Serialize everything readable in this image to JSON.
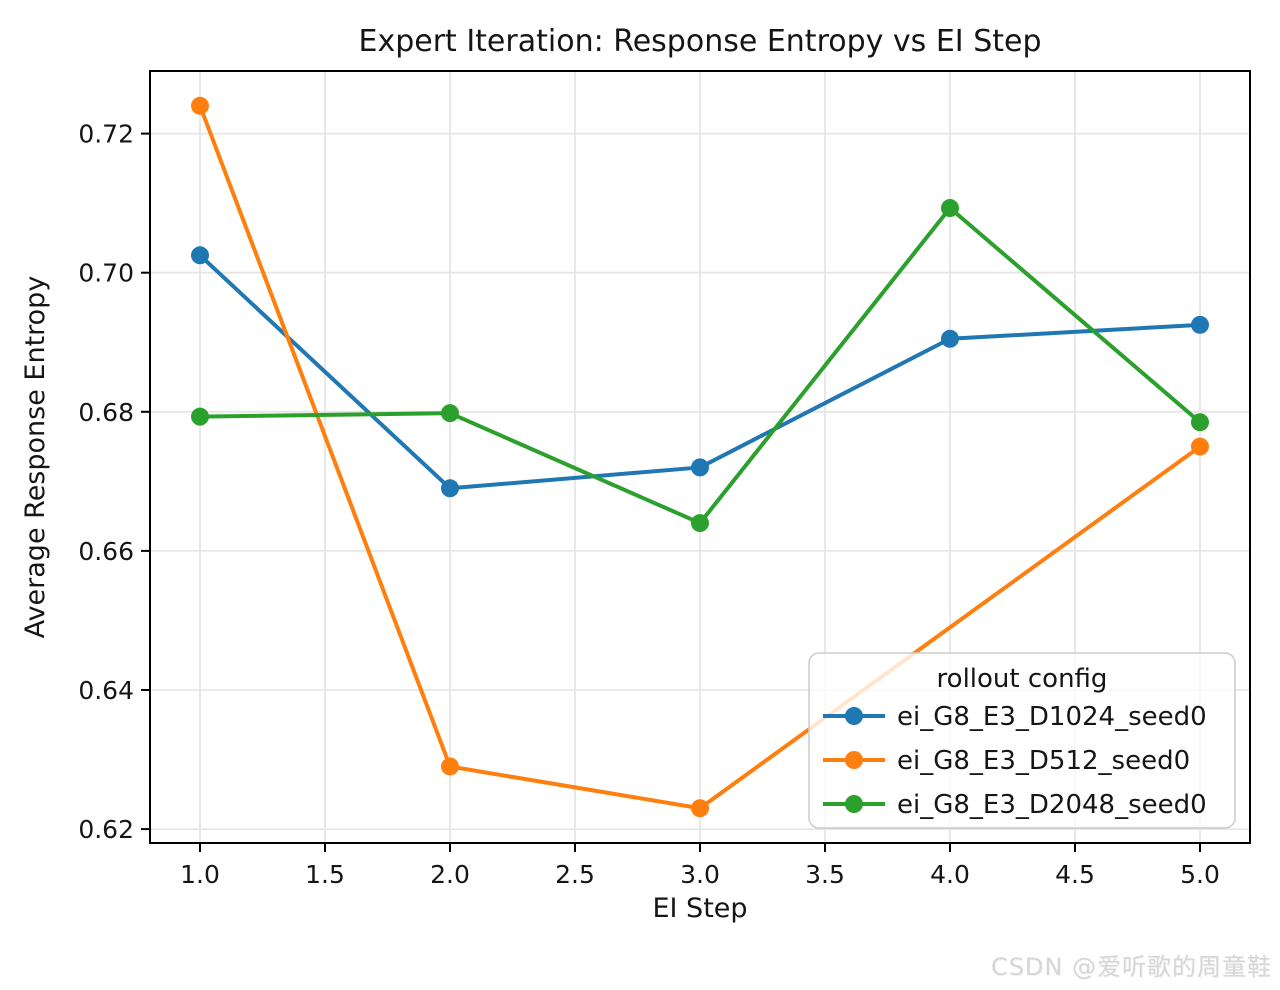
{
  "chart_data": {
    "type": "line",
    "title": "Expert Iteration: Response Entropy vs EI Step",
    "xlabel": "EI Step",
    "ylabel": "Average Response Entropy",
    "xlim": [
      0.8,
      5.2
    ],
    "ylim": [
      0.618,
      0.729
    ],
    "grid": true,
    "grid_color": "#e6e6e6",
    "axis_color": "#000000",
    "text_color": "#151515",
    "x_tick_values": [
      1.0,
      1.5,
      2.0,
      2.5,
      3.0,
      3.5,
      4.0,
      4.5,
      5.0
    ],
    "x_tick_labels": [
      "1.0",
      "1.5",
      "2.0",
      "2.5",
      "3.0",
      "3.5",
      "4.0",
      "4.5",
      "5.0"
    ],
    "y_tick_values": [
      0.62,
      0.64,
      0.66,
      0.68,
      0.7,
      0.72
    ],
    "y_tick_labels": [
      "0.62",
      "0.64",
      "0.66",
      "0.68",
      "0.70",
      "0.72"
    ],
    "legend": {
      "title": "rollout config",
      "position": "lower right",
      "border_color": "#cccccc",
      "background": "rgba(255,255,255,0.8)"
    },
    "series": [
      {
        "name": "ei_G8_E3_D1024_seed0",
        "color": "#1f77b4",
        "x": [
          1,
          2,
          3,
          4,
          5
        ],
        "y": [
          0.7025,
          0.669,
          0.672,
          0.6905,
          0.6925
        ]
      },
      {
        "name": "ei_G8_E3_D512_seed0",
        "color": "#ff7f0e",
        "x": [
          1,
          2,
          3,
          5
        ],
        "y": [
          0.724,
          0.629,
          0.623,
          0.675
        ]
      },
      {
        "name": "ei_G8_E3_D2048_seed0",
        "color": "#2ca02c",
        "x": [
          1,
          2,
          3,
          4,
          5
        ],
        "y": [
          0.6793,
          0.6798,
          0.664,
          0.7093,
          0.6785
        ]
      }
    ]
  },
  "watermark": {
    "text": "CSDN @爱听歌的周童鞋",
    "color": "#d6d6d6"
  }
}
